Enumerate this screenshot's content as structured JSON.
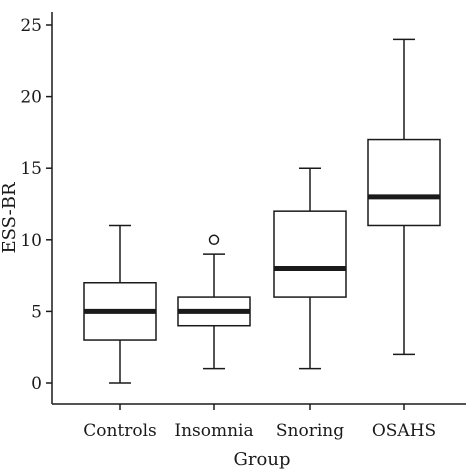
{
  "chart_data": {
    "type": "box",
    "xlabel": "Group",
    "ylabel": "ESS-BR",
    "ylim": [
      -1.5,
      26
    ],
    "y_ticks": [
      0,
      5,
      10,
      15,
      20,
      25
    ],
    "y_tick_labels": [
      "0",
      "5",
      "10",
      "15",
      "20",
      "25"
    ],
    "grid": false,
    "categories": [
      "Controls",
      "Insomnia",
      "Snoring",
      "OSAHS"
    ],
    "boxes": [
      {
        "category": "Controls",
        "min": 0,
        "q1": 3,
        "median": 5,
        "q3": 7,
        "max": 11,
        "outliers": []
      },
      {
        "category": "Insomnia",
        "min": 1,
        "q1": 4,
        "median": 5,
        "q3": 6,
        "max": 9,
        "outliers": [
          10
        ]
      },
      {
        "category": "Snoring",
        "min": 1,
        "q1": 6,
        "median": 8,
        "q3": 12,
        "max": 15,
        "outliers": []
      },
      {
        "category": "OSAHS",
        "min": 2,
        "q1": 11,
        "median": 13,
        "q3": 17,
        "max": 24,
        "outliers": []
      }
    ],
    "colors": {
      "line": "#1a1a1a",
      "box_fill": "#ffffff"
    }
  }
}
